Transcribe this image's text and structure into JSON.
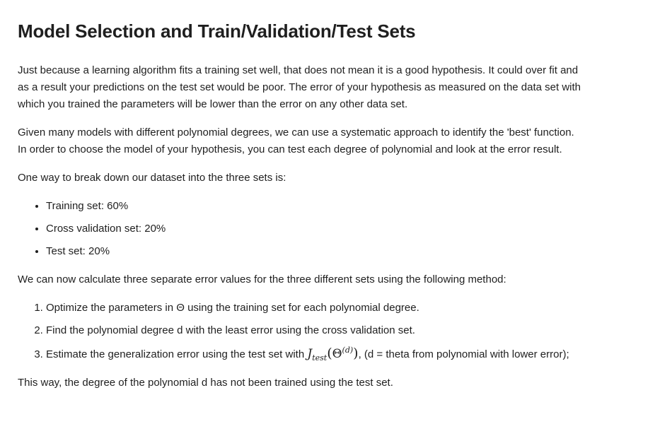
{
  "title": "Model Selection and Train/Validation/Test Sets",
  "paragraphs": {
    "p1": "Just because a learning algorithm fits a training set well, that does not mean it is a good hypothesis. It could over fit and as a result your predictions on the test set would be poor. The error of your hypothesis as measured on the data set with which you trained the parameters will be lower than the error on any other data set.",
    "p2": "Given many models with different polynomial degrees, we can use a systematic approach to identify the 'best' function. In order to choose the model of your hypothesis, you can test each degree of polynomial and look at the error result.",
    "p3": "One way to break down our dataset into the three sets is:",
    "p4": "We can now calculate three separate error values for the three different sets using the following method:",
    "p5": "This way, the degree of the polynomial d has not been trained using the test set."
  },
  "split_list": [
    "Training set: 60%",
    "Cross validation set: 20%",
    "Test set: 20%"
  ],
  "method_list": {
    "step1": "Optimize the parameters in Θ using the training set for each polynomial degree.",
    "step2": "Find the polynomial degree d with the least error using the cross validation set.",
    "step3_before": "Estimate the generalization error using the test set with ",
    "step3_after": ", (d = theta from polynomial with lower error);"
  },
  "formula": {
    "J": "J",
    "sub": "test",
    "open": "(",
    "theta": "Θ",
    "sup": "(d)",
    "close": ")"
  }
}
